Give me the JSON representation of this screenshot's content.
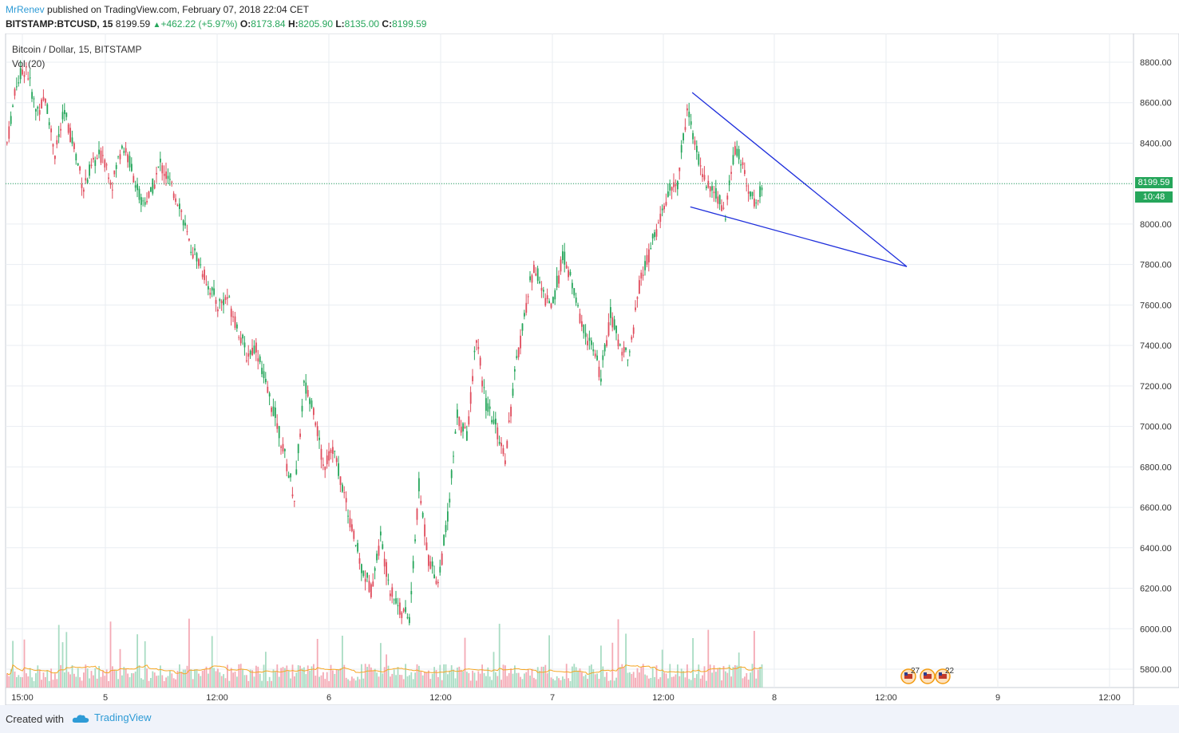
{
  "header": {
    "author": "MrRenev",
    "published": "published on TradingView.com, February 07, 2018 22:04 CET",
    "symbol": "BITSTAMP:BTCUSD, 15",
    "last": "8199.59",
    "change": "+462.22 (+5.97%)",
    "o_label": "O:",
    "o_value": "8173.84",
    "h_label": "H:",
    "h_value": "8205.90",
    "l_label": "L:",
    "l_value": "8135.00",
    "c_label": "C:",
    "c_value": "8199.59"
  },
  "legend": {
    "title": "Bitcoin / Dollar, 15, BITSTAMP",
    "volume": "Vol (20)"
  },
  "price_tag": {
    "price": "8199.59",
    "countdown": "10:48"
  },
  "footer": {
    "created": "Created with",
    "brand": "TradingView"
  },
  "colors": {
    "up": "#26a65b",
    "down": "#e04c5d",
    "vol_up": "#a8dcc3",
    "vol_down": "#f4aab5",
    "ma": "#f5a623",
    "trend": "#1f2fdc",
    "grid": "#e9edf2",
    "accent": "#2e9bd6"
  },
  "event_badges": [
    {
      "count": "27",
      "icon": "flag-us-icon"
    },
    {
      "count": "",
      "icon": "flag-us-icon"
    },
    {
      "count": "22",
      "icon": "flag-us-icon"
    }
  ],
  "chart_data": {
    "type": "candlestick",
    "title": "Bitcoin / Dollar, 15, BITSTAMP",
    "ylim": [
      5700,
      8900
    ],
    "grid": true,
    "y_ticks": [
      5800,
      6000,
      6200,
      6400,
      6600,
      6800,
      7000,
      7200,
      7400,
      7600,
      7800,
      8000,
      8200,
      8400,
      8600,
      8800
    ],
    "y_tick_labels": [
      "5800.00",
      "6000.00",
      "6200.00",
      "6400.00",
      "6600.00",
      "6800.00",
      "7000.00",
      "7200.00",
      "7400.00",
      "7600.00",
      "7800.00",
      "8000.00",
      "8200.00",
      "8400.00",
      "8600.00",
      "8800.00"
    ],
    "x_tick_labels": [
      "15:00",
      "5",
      "12:00",
      "6",
      "12:00",
      "7",
      "12:00",
      "8",
      "12:00",
      "9",
      "12:00"
    ],
    "current_price": 8199.59,
    "price_path": [
      [
        0,
        8400
      ],
      [
        5,
        8700
      ],
      [
        10,
        8780
      ],
      [
        15,
        8560
      ],
      [
        20,
        8620
      ],
      [
        25,
        8350
      ],
      [
        30,
        8550
      ],
      [
        35,
        8380
      ],
      [
        40,
        8180
      ],
      [
        45,
        8300
      ],
      [
        50,
        8350
      ],
      [
        55,
        8200
      ],
      [
        60,
        8400
      ],
      [
        65,
        8280
      ],
      [
        70,
        8100
      ],
      [
        75,
        8150
      ],
      [
        80,
        8300
      ],
      [
        85,
        8200
      ],
      [
        90,
        8100
      ],
      [
        95,
        7900
      ],
      [
        100,
        7820
      ],
      [
        105,
        7700
      ],
      [
        110,
        7600
      ],
      [
        115,
        7640
      ],
      [
        120,
        7500
      ],
      [
        125,
        7350
      ],
      [
        130,
        7400
      ],
      [
        135,
        7200
      ],
      [
        140,
        7050
      ],
      [
        145,
        6850
      ],
      [
        150,
        6650
      ],
      [
        155,
        7200
      ],
      [
        160,
        7100
      ],
      [
        165,
        6800
      ],
      [
        170,
        6900
      ],
      [
        175,
        6700
      ],
      [
        180,
        6500
      ],
      [
        185,
        6300
      ],
      [
        190,
        6200
      ],
      [
        195,
        6450
      ],
      [
        200,
        6200
      ],
      [
        205,
        6100
      ],
      [
        210,
        6050
      ],
      [
        215,
        6700
      ],
      [
        220,
        6350
      ],
      [
        225,
        6230
      ],
      [
        230,
        6550
      ],
      [
        235,
        7050
      ],
      [
        240,
        6950
      ],
      [
        245,
        7450
      ],
      [
        250,
        7100
      ],
      [
        255,
        7000
      ],
      [
        260,
        6850
      ],
      [
        265,
        7250
      ],
      [
        270,
        7550
      ],
      [
        275,
        7800
      ],
      [
        280,
        7650
      ],
      [
        285,
        7600
      ],
      [
        290,
        7850
      ],
      [
        295,
        7700
      ],
      [
        300,
        7500
      ],
      [
        305,
        7400
      ],
      [
        310,
        7250
      ],
      [
        315,
        7550
      ],
      [
        320,
        7400
      ],
      [
        325,
        7350
      ],
      [
        330,
        7700
      ],
      [
        335,
        7850
      ],
      [
        340,
        8000
      ],
      [
        345,
        8150
      ],
      [
        350,
        8200
      ],
      [
        355,
        8580
      ],
      [
        360,
        8350
      ],
      [
        365,
        8200
      ],
      [
        370,
        8150
      ],
      [
        375,
        8050
      ],
      [
        380,
        8380
      ],
      [
        385,
        8250
      ],
      [
        390,
        8100
      ],
      [
        395,
        8200
      ]
    ],
    "trendlines": [
      {
        "from": [
          358,
          8650
        ],
        "to": [
          470,
          7790
        ]
      },
      {
        "from": [
          357,
          8085
        ],
        "to": [
          470,
          7790
        ]
      }
    ]
  }
}
